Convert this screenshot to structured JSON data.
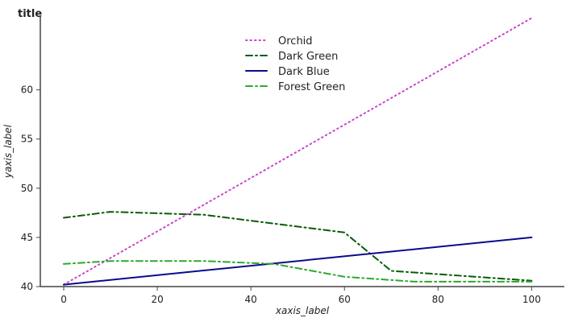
{
  "chart_data": {
    "type": "line",
    "title": "title",
    "xlabel": "xaxis_label",
    "ylabel": "yaxis_label",
    "xlim": [
      -5,
      107
    ],
    "ylim": [
      40,
      67.5
    ],
    "x_ticks": [
      0,
      20,
      40,
      60,
      80,
      100
    ],
    "y_ticks": [
      40,
      45,
      50,
      55,
      60
    ],
    "grid": false,
    "legend_position": "top-right",
    "series": [
      {
        "name": "Orchid",
        "color": "#cc44cc",
        "dash": "dotted",
        "x": [
          0,
          100
        ],
        "y": [
          40.2,
          67.3
        ]
      },
      {
        "name": "Dark Green",
        "color": "#0a5c0a",
        "dash": "dashdot",
        "x": [
          0,
          10,
          30,
          60,
          70,
          100
        ],
        "y": [
          47.0,
          47.6,
          47.3,
          45.5,
          41.6,
          40.6
        ]
      },
      {
        "name": "Dark Blue",
        "color": "#0a0a8c",
        "dash": "solid",
        "x": [
          0,
          100
        ],
        "y": [
          40.2,
          45.0
        ]
      },
      {
        "name": "Forest Green",
        "color": "#2ea82e",
        "dash": "dashdot",
        "x": [
          0,
          10,
          30,
          45,
          60,
          75,
          100
        ],
        "y": [
          42.3,
          42.6,
          42.6,
          42.3,
          41.0,
          40.5,
          40.5
        ]
      }
    ]
  }
}
